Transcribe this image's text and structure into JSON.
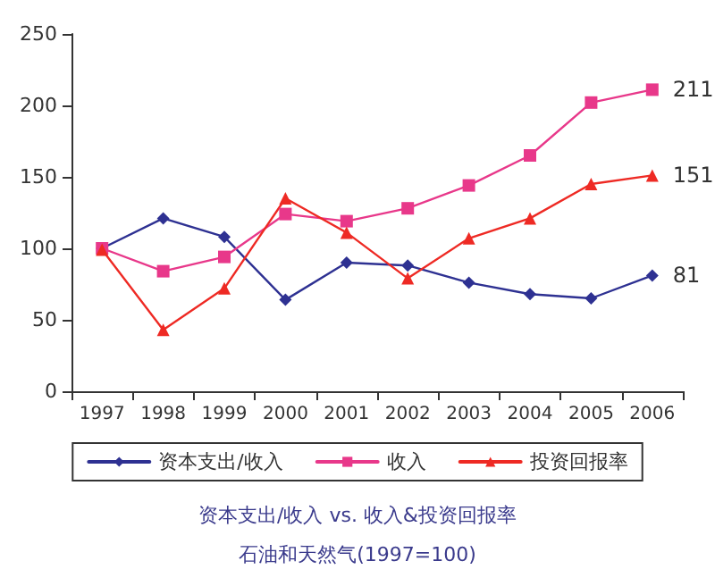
{
  "chart_data": {
    "type": "line",
    "title": "资本支出/收入 vs. 收入&投资回报率",
    "subtitle": "石油和天然气(1997=100)",
    "categories": [
      "1997",
      "1998",
      "1999",
      "2000",
      "2001",
      "2002",
      "2003",
      "2004",
      "2005",
      "2006"
    ],
    "series": [
      {
        "name": "资本支出/收入",
        "color": "#2e3192",
        "marker": "diamond",
        "values": [
          100,
          121,
          108,
          64,
          90,
          88,
          76,
          68,
          65,
          81
        ],
        "value_labels": [
          null,
          null,
          null,
          null,
          null,
          null,
          null,
          null,
          null,
          "81"
        ]
      },
      {
        "name": "收入",
        "color": "#e8388a",
        "marker": "square",
        "values": [
          100,
          84,
          94,
          124,
          119,
          128,
          144,
          165,
          202,
          211
        ],
        "value_labels": [
          null,
          null,
          null,
          null,
          null,
          null,
          null,
          null,
          null,
          "211"
        ]
      },
      {
        "name": "投资回报率",
        "color": "#ee2a24",
        "marker": "triangle",
        "values": [
          99,
          43,
          72,
          135,
          111,
          79,
          107,
          121,
          145,
          151
        ],
        "value_labels": [
          null,
          null,
          null,
          null,
          null,
          null,
          null,
          null,
          null,
          "151"
        ]
      }
    ],
    "ylim": [
      0,
      250
    ],
    "yticks": [
      0,
      50,
      100,
      150,
      200,
      250
    ],
    "grid": false,
    "legend": "bottom"
  }
}
